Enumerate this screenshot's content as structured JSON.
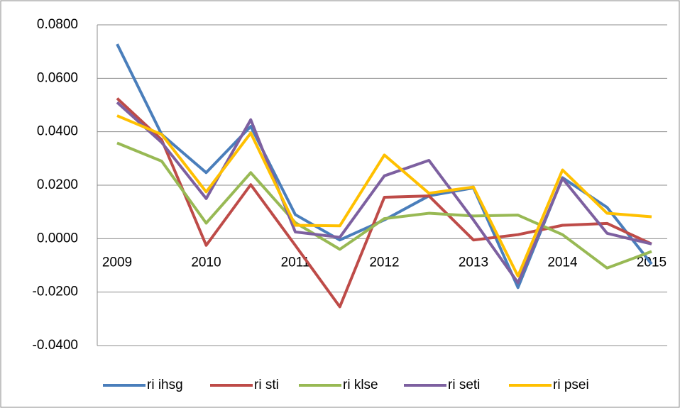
{
  "chart_data": {
    "type": "line",
    "categories": [
      "2009",
      null,
      "2010",
      null,
      "2011",
      null,
      "2012",
      null,
      "2013",
      null,
      "2014",
      null,
      "2015"
    ],
    "series": [
      {
        "name": "ri ihsg",
        "color": "#4a7ebb",
        "values": [
          0.0728,
          0.039,
          0.0247,
          0.042,
          0.009,
          -0.0005,
          0.007,
          0.016,
          0.019,
          -0.0183,
          0.0228,
          0.0117,
          -0.0095
        ]
      },
      {
        "name": "ri sti",
        "color": "#be4b48",
        "values": [
          0.0525,
          0.037,
          -0.0025,
          0.0202,
          -0.0025,
          -0.0255,
          0.0155,
          0.016,
          -0.0005,
          0.0015,
          0.005,
          0.0057,
          -0.002
        ]
      },
      {
        "name": "ri klse",
        "color": "#98b954",
        "values": [
          0.0358,
          0.029,
          0.0058,
          0.0247,
          0.006,
          -0.004,
          0.0075,
          0.0095,
          0.0085,
          0.0088,
          0.0015,
          -0.011,
          -0.0048
        ]
      },
      {
        "name": "ri seti",
        "color": "#7d60a0",
        "values": [
          0.051,
          0.036,
          0.015,
          0.0445,
          0.0025,
          0.0005,
          0.0235,
          0.0293,
          0.007,
          -0.0165,
          0.0225,
          0.002,
          -0.002
        ]
      },
      {
        "name": "ri psei",
        "color": "#ffc000",
        "values": [
          0.046,
          0.039,
          0.0175,
          0.0395,
          0.005,
          0.0048,
          0.0313,
          0.017,
          0.0193,
          -0.014,
          0.0257,
          0.0095,
          0.0082
        ]
      }
    ],
    "ylim": [
      -0.04,
      0.08
    ],
    "yticks": [
      {
        "value": -0.04,
        "label": "-0.0400"
      },
      {
        "value": -0.02,
        "label": "-0.0200"
      },
      {
        "value": 0,
        "label": "0.0000"
      },
      {
        "value": 0.02,
        "label": "0.0200"
      },
      {
        "value": 0.04,
        "label": "0.0400"
      },
      {
        "value": 0.06,
        "label": "0.0600"
      },
      {
        "value": 0.08,
        "label": "0.0800"
      }
    ],
    "grid": true,
    "legend": "bottom"
  }
}
